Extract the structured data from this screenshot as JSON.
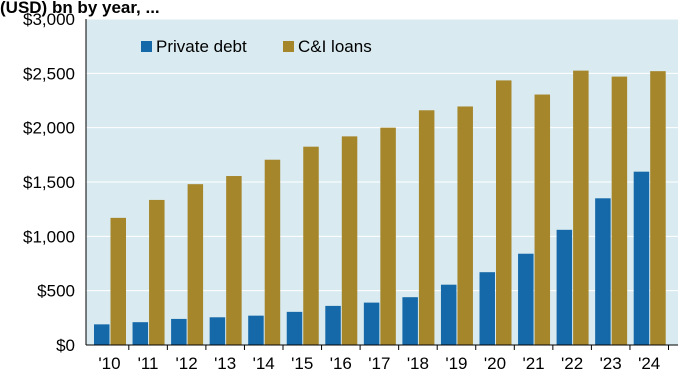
{
  "partial_header": "(USD) bn by year, ...",
  "chart_data": {
    "type": "bar",
    "categories": [
      "'10",
      "'11",
      "'12",
      "'13",
      "'14",
      "'15",
      "'16",
      "'17",
      "'18",
      "'19",
      "'20",
      "'21",
      "'22",
      "'23",
      "'24"
    ],
    "series": [
      {
        "name": "Private debt",
        "color": "#1569a8",
        "values": [
          190,
          210,
          240,
          255,
          270,
          305,
          360,
          390,
          440,
          555,
          670,
          840,
          1060,
          1350,
          1595
        ]
      },
      {
        "name": "C&I loans",
        "color": "#a6862b",
        "values": [
          1170,
          1335,
          1480,
          1555,
          1705,
          1825,
          1920,
          2000,
          2160,
          2195,
          2435,
          2305,
          2525,
          2470,
          2520
        ]
      }
    ],
    "yticks": [
      "$0",
      "$500",
      "$1,000",
      "$1,500",
      "$2,000",
      "$2,500",
      "$3,000"
    ],
    "ylim": [
      0,
      3000
    ],
    "plot_background": "#d9ebf1",
    "grid": true,
    "legend": "top-left"
  }
}
